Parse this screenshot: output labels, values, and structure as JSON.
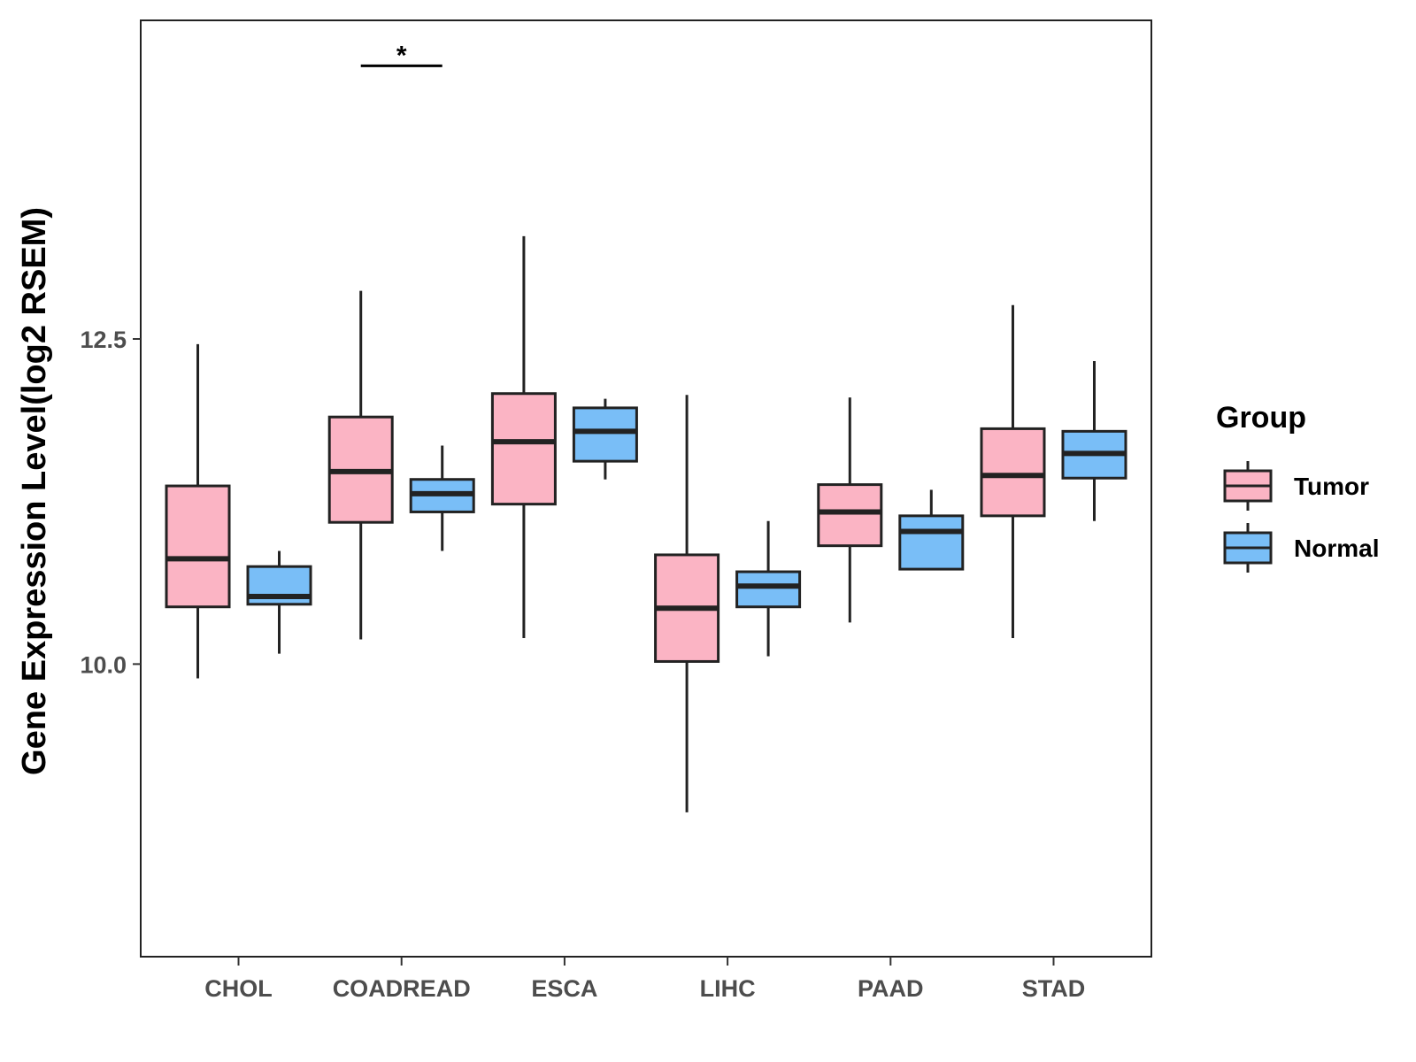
{
  "chart_data": {
    "type": "boxplot",
    "ylabel": "Gene Expression Level(log2 RSEM)",
    "xlabel": "",
    "ylim": [
      7.75,
      14.95
    ],
    "yticks": [
      10.0,
      12.5
    ],
    "ytick_labels": [
      "10.0",
      "12.5"
    ],
    "categories": [
      "CHOL",
      "COADREAD",
      "ESCA",
      "LIHC",
      "PAAD",
      "STAD"
    ],
    "legend": {
      "title": "Group",
      "position": "right",
      "entries": [
        {
          "name": "Tumor",
          "color": "#FBB4C4"
        },
        {
          "name": "Normal",
          "color": "#79BEF7"
        }
      ]
    },
    "series": [
      {
        "name": "Tumor",
        "color": "#FBB4C4",
        "boxes": [
          {
            "min": 9.89,
            "q1": 10.44,
            "median": 10.81,
            "q3": 11.37,
            "max": 12.46
          },
          {
            "min": 10.19,
            "q1": 11.09,
            "median": 11.48,
            "q3": 11.9,
            "max": 12.87
          },
          {
            "min": 10.2,
            "q1": 11.23,
            "median": 11.71,
            "q3": 12.08,
            "max": 13.29
          },
          {
            "min": 8.86,
            "q1": 10.02,
            "median": 10.43,
            "q3": 10.84,
            "max": 12.07
          },
          {
            "min": 10.32,
            "q1": 10.91,
            "median": 11.17,
            "q3": 11.38,
            "max": 12.05
          },
          {
            "min": 10.2,
            "q1": 11.14,
            "median": 11.45,
            "q3": 11.81,
            "max": 12.76
          }
        ]
      },
      {
        "name": "Normal",
        "color": "#79BEF7",
        "boxes": [
          {
            "min": 10.08,
            "q1": 10.46,
            "median": 10.52,
            "q3": 10.75,
            "max": 10.87
          },
          {
            "min": 10.87,
            "q1": 11.17,
            "median": 11.31,
            "q3": 11.42,
            "max": 11.68
          },
          {
            "min": 11.42,
            "q1": 11.56,
            "median": 11.79,
            "q3": 11.97,
            "max": 12.04
          },
          {
            "min": 10.06,
            "q1": 10.44,
            "median": 10.6,
            "q3": 10.71,
            "max": 11.1
          },
          {
            "min": 10.73,
            "q1": 10.73,
            "median": 11.02,
            "q3": 11.14,
            "max": 11.34
          },
          {
            "min": 11.1,
            "q1": 11.43,
            "median": 11.62,
            "q3": 11.79,
            "max": 12.33
          }
        ]
      }
    ],
    "annotations": [
      {
        "category": "COADREAD",
        "label": "*",
        "y": 14.6
      }
    ]
  }
}
